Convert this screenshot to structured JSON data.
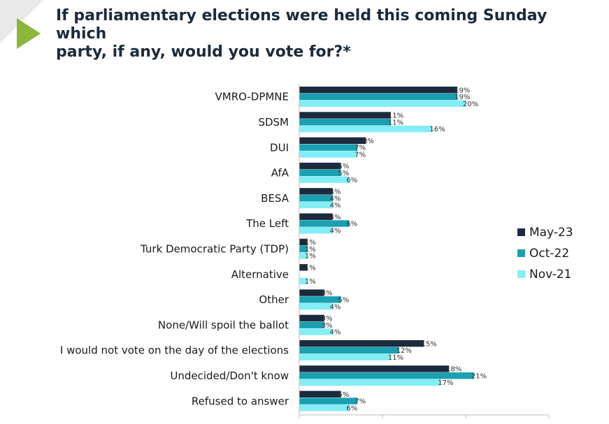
{
  "header": {
    "title_line1": "If parliamentary elections were held this coming Sunday which",
    "title_line2": "party, if any, would you vote for?*"
  },
  "colors": {
    "May-23": "#1c2a3d",
    "Oct-22": "#1aa0b0",
    "Nov-21": "#84eef7",
    "accent": "#8db63c"
  },
  "chart_data": {
    "type": "bar",
    "orientation": "horizontal",
    "categories": [
      "VMRO-DPMNE",
      "SDSM",
      "DUI",
      "AfA",
      "BESA",
      "The Left",
      "Turk Democratic Party (TDP)",
      "Alternative",
      "Other",
      "None/Will spoil the ballot",
      "I would not vote on the day of the elections",
      "Undecided/Don't know",
      "Refused to answer"
    ],
    "series": [
      {
        "name": "May-23",
        "values": [
          19,
          11,
          8,
          5,
          4,
          4,
          1,
          1,
          3,
          3,
          15,
          18,
          5
        ]
      },
      {
        "name": "Oct-22",
        "values": [
          19,
          11,
          7,
          5,
          4,
          6,
          1,
          null,
          5,
          3,
          12,
          21,
          7
        ]
      },
      {
        "name": "Nov-21",
        "values": [
          20,
          16,
          7,
          6,
          4,
          4,
          1,
          1,
          4,
          4,
          11,
          17,
          6
        ]
      }
    ],
    "value_suffix": "%",
    "xlim": [
      0,
      30
    ],
    "legend_position": "right"
  }
}
